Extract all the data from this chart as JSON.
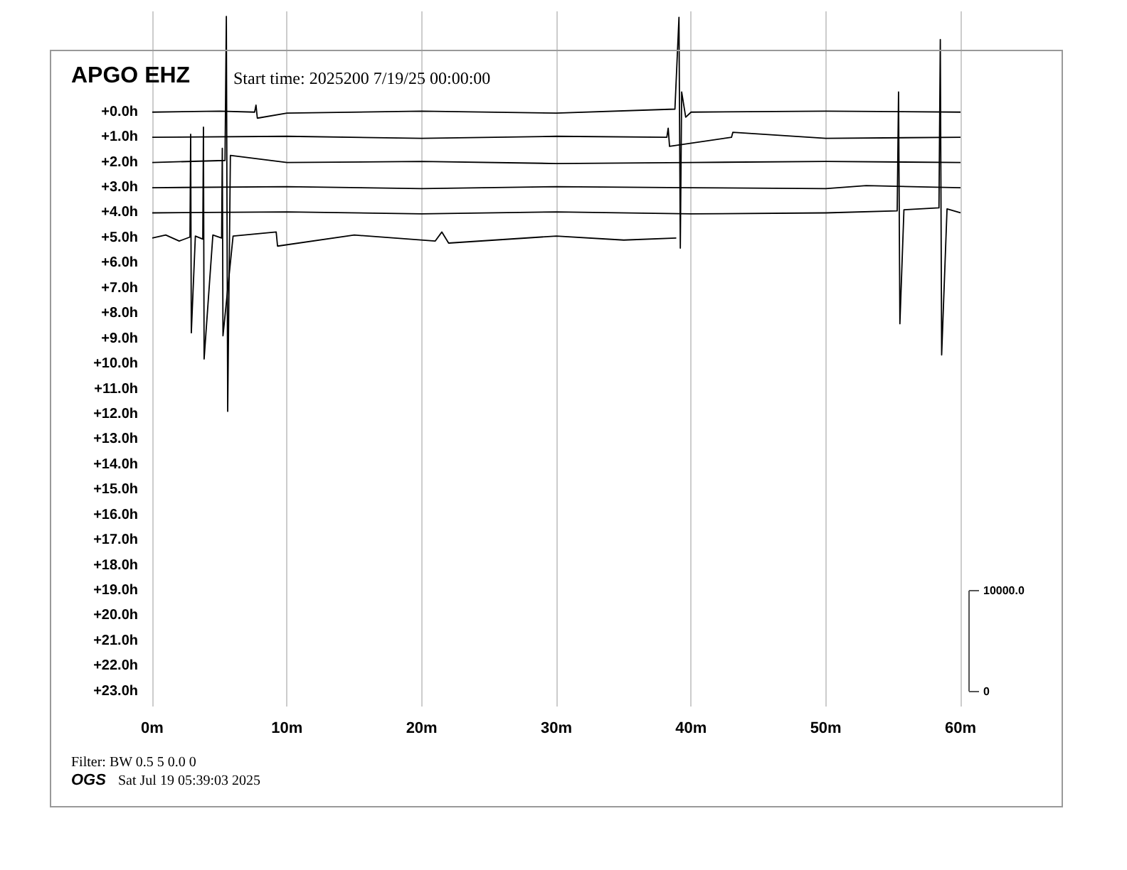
{
  "chart_data": {
    "type": "line",
    "title": "APGO EHZ",
    "subtitle": "Start time: 2025200  7/19/25 00:00:00",
    "annotations": [
      "Filter: BW 0.5 5 0.0 0",
      "OGS",
      "Sat Jul 19 05:39:03 2025"
    ],
    "xlim": [
      0,
      60
    ],
    "xticks": [
      {
        "value": 0,
        "label": "0m"
      },
      {
        "value": 10,
        "label": "10m"
      },
      {
        "value": 20,
        "label": "20m"
      },
      {
        "value": 30,
        "label": "30m"
      },
      {
        "value": 40,
        "label": "40m"
      },
      {
        "value": 50,
        "label": "50m"
      },
      {
        "value": 60,
        "label": "60m"
      }
    ],
    "ylim": [
      23.6,
      -4
    ],
    "yticks": [
      {
        "value": 0,
        "label": "+0.0h"
      },
      {
        "value": 1,
        "label": "+1.0h"
      },
      {
        "value": 2,
        "label": "+2.0h"
      },
      {
        "value": 3,
        "label": "+3.0h"
      },
      {
        "value": 4,
        "label": "+4.0h"
      },
      {
        "value": 5,
        "label": "+5.0h"
      },
      {
        "value": 6,
        "label": "+6.0h"
      },
      {
        "value": 7,
        "label": "+7.0h"
      },
      {
        "value": 8,
        "label": "+8.0h"
      },
      {
        "value": 9,
        "label": "+9.0h"
      },
      {
        "value": 10,
        "label": "+10.0h"
      },
      {
        "value": 11,
        "label": "+11.0h"
      },
      {
        "value": 12,
        "label": "+12.0h"
      },
      {
        "value": 13,
        "label": "+13.0h"
      },
      {
        "value": 14,
        "label": "+14.0h"
      },
      {
        "value": 15,
        "label": "+15.0h"
      },
      {
        "value": 16,
        "label": "+16.0h"
      },
      {
        "value": 17,
        "label": "+17.0h"
      },
      {
        "value": 18,
        "label": "+18.0h"
      },
      {
        "value": 19,
        "label": "+19.0h"
      },
      {
        "value": 20,
        "label": "+20.0h"
      },
      {
        "value": 21,
        "label": "+21.0h"
      },
      {
        "value": 22,
        "label": "+22.0h"
      },
      {
        "value": 23,
        "label": "+23.0h"
      }
    ],
    "y2lim": [
      -1500,
      67500
    ],
    "y2ticks": [
      0,
      {
        "value": 10000,
        "label": "10000.0"
      }
    ],
    "grid": "x",
    "marker": "none",
    "line_style": "solid",
    "series": [
      {
        "color": "#000000",
        "axis": "y2",
        "x": [
          0,
          5,
          7.6,
          7.7,
          7.8,
          10,
          20,
          30,
          38.8,
          39.1,
          39.2,
          39.3,
          39.6,
          40,
          50,
          60
        ],
        "values": [
          57500,
          57600,
          57500,
          58200,
          56900,
          57400,
          57600,
          57400,
          57800,
          66900,
          44000,
          59500,
          57000,
          57500,
          57600,
          57500
        ]
      },
      {
        "color": "#000000",
        "axis": "y2",
        "x": [
          0,
          10,
          20,
          30,
          38.2,
          38.3,
          38.4,
          43,
          43.1,
          50,
          60
        ],
        "values": [
          55000,
          55100,
          54900,
          55100,
          55000,
          55900,
          54100,
          55000,
          55500,
          54900,
          55000
        ]
      },
      {
        "color": "#000000",
        "axis": "y2",
        "x": [
          0,
          5.4,
          5.5,
          5.6,
          5.8,
          10,
          20,
          30,
          40,
          50,
          60
        ],
        "values": [
          52500,
          52700,
          67000,
          27800,
          53200,
          52500,
          52600,
          52400,
          52500,
          52600,
          52500
        ]
      },
      {
        "color": "#000000",
        "axis": "y2",
        "x": [
          0,
          10,
          20,
          30,
          40,
          50,
          53,
          60
        ],
        "values": [
          50000,
          50100,
          49900,
          50100,
          50000,
          49900,
          50200,
          50000
        ]
      },
      {
        "color": "#000000",
        "axis": "y2",
        "x": [
          0,
          10,
          20,
          30,
          40,
          50,
          55.3,
          55.4,
          55.5,
          55.8,
          58.4,
          58.5,
          58.6,
          59,
          60
        ],
        "values": [
          47500,
          47600,
          47400,
          47600,
          47400,
          47500,
          47700,
          59500,
          36500,
          47800,
          48000,
          64700,
          33400,
          47900,
          47500
        ]
      },
      {
        "color": "#000000",
        "axis": "y2",
        "x": [
          0,
          1,
          2,
          2.8,
          2.85,
          2.9,
          3.2,
          3.75,
          3.8,
          3.85,
          4.5,
          5.15,
          5.2,
          5.25,
          6,
          9.2,
          9.3,
          15,
          21,
          21.5,
          22,
          30,
          35,
          38.9
        ],
        "values": [
          45000,
          45300,
          44700,
          45100,
          55300,
          35600,
          45200,
          44900,
          56000,
          33000,
          45300,
          45000,
          53900,
          35300,
          45200,
          45600,
          44200,
          45300,
          44700,
          45600,
          44500,
          45200,
          44800,
          45000
        ]
      }
    ]
  }
}
